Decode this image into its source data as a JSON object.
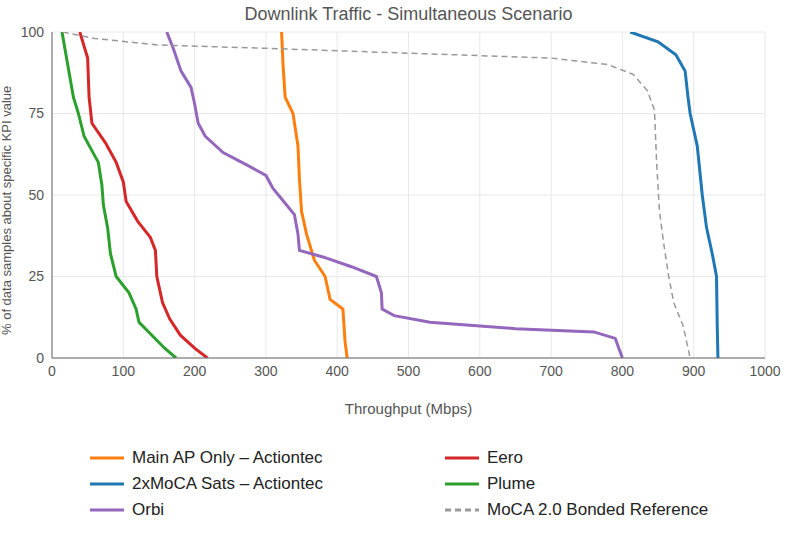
{
  "chart_data": {
    "type": "line",
    "title": "Downlink Traffic - Simultaneous Scenario",
    "x_label": "Throughput (Mbps)",
    "y_label": "% of data samples about specific KPI value",
    "xlim": [
      0,
      1000
    ],
    "xticks": [
      0,
      100,
      200,
      300,
      400,
      500,
      600,
      700,
      800,
      900,
      1000
    ],
    "ylim": [
      0,
      100
    ],
    "yticks": [
      0,
      25,
      50,
      75,
      100
    ],
    "grid": true,
    "legend": "bottom",
    "series": [
      {
        "name": "Main AP Only – Actiontec",
        "color": "#ff7f0e",
        "line_style": "solid",
        "x": [
          322,
          324,
          327,
          338,
          345,
          347,
          350,
          357,
          368,
          383,
          390,
          408,
          411,
          414
        ],
        "values": [
          100,
          90,
          80,
          75,
          65,
          55,
          45,
          38,
          30,
          25,
          18,
          15,
          5,
          0
        ]
      },
      {
        "name": "Eero",
        "color": "#d62728",
        "line_style": "solid",
        "x": [
          39,
          50,
          52,
          56,
          75,
          90,
          100,
          104,
          120,
          138,
          145,
          147,
          155,
          165,
          180,
          200,
          218
        ],
        "values": [
          100,
          92,
          80,
          72,
          66,
          60,
          54,
          48,
          42,
          37,
          33,
          25,
          17,
          12,
          7,
          3,
          0
        ]
      },
      {
        "name": "2xMoCA Sats – Actiontec",
        "color": "#1f77b4",
        "line_style": "solid",
        "x": [
          811,
          850,
          875,
          888,
          892,
          895,
          905,
          912,
          918,
          926,
          932,
          933,
          934
        ],
        "values": [
          100,
          97,
          93,
          88,
          80,
          75,
          65,
          50,
          40,
          32,
          25,
          10,
          0
        ]
      },
      {
        "name": "Plume",
        "color": "#2ca02c",
        "line_style": "solid",
        "x": [
          14,
          22,
          30,
          37,
          45,
          55,
          65,
          70,
          72,
          78,
          82,
          90,
          108,
          118,
          122,
          140,
          158,
          174
        ],
        "values": [
          100,
          90,
          80,
          75,
          68,
          64,
          60,
          53,
          47,
          40,
          32,
          25,
          20,
          15,
          11,
          7,
          3,
          0
        ]
      },
      {
        "name": "Orbi",
        "color": "#9467bd",
        "line_style": "solid",
        "x": [
          161,
          170,
          181,
          195,
          200,
          205,
          215,
          240,
          275,
          300,
          310,
          325,
          340,
          345,
          347,
          380,
          420,
          455,
          462,
          463,
          480,
          530,
          650,
          760,
          790,
          800
        ],
        "values": [
          100,
          95,
          88,
          83,
          78,
          72,
          68,
          63,
          59,
          56,
          52,
          48,
          44,
          38,
          33,
          31,
          28,
          25,
          20,
          15,
          13,
          11,
          9,
          8,
          6,
          0
        ]
      },
      {
        "name": "MoCA 2.0 Bonded Reference",
        "color": "#999999",
        "line_style": "dashed",
        "x": [
          15,
          60,
          150,
          300,
          500,
          700,
          780,
          815,
          835,
          845,
          848,
          852,
          858,
          865,
          872,
          885,
          895
        ],
        "values": [
          100,
          98,
          96,
          95,
          93.5,
          92,
          90,
          87,
          82,
          76,
          60,
          45,
          35,
          25,
          17,
          10,
          0
        ]
      }
    ]
  }
}
